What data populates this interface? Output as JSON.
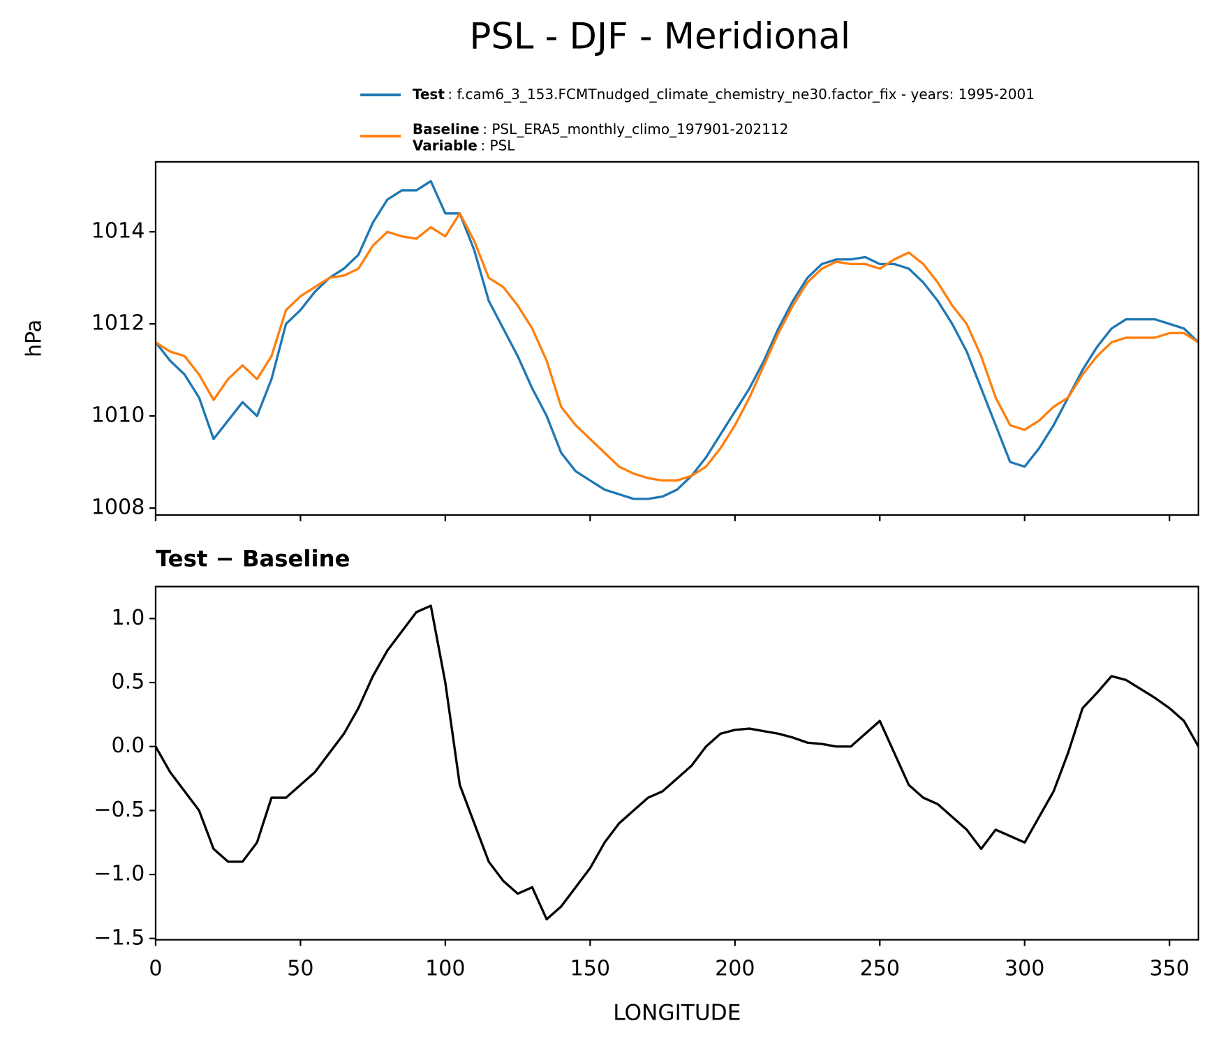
{
  "chart_data": [
    {
      "type": "line",
      "title": "PSL - DJF - Meridional",
      "ylabel": "hPa",
      "x": [
        0,
        5,
        10,
        15,
        20,
        25,
        30,
        35,
        40,
        45,
        50,
        55,
        60,
        65,
        70,
        75,
        80,
        85,
        90,
        95,
        100,
        105,
        110,
        115,
        120,
        125,
        130,
        135,
        140,
        145,
        150,
        155,
        160,
        165,
        170,
        175,
        180,
        185,
        190,
        195,
        200,
        205,
        210,
        215,
        220,
        225,
        230,
        235,
        240,
        245,
        250,
        255,
        260,
        265,
        270,
        275,
        280,
        285,
        290,
        295,
        300,
        305,
        310,
        315,
        320,
        325,
        330,
        335,
        340,
        345,
        350,
        355,
        360
      ],
      "series": [
        {
          "name": "Test",
          "detail": ": f.cam6_3_153.FCMTnudged_climate_chemistry_ne30.factor_fix - years: 1995-2001",
          "color": "#1f77b4",
          "values": [
            1011.6,
            1011.2,
            1010.9,
            1010.4,
            1009.5,
            1009.9,
            1010.3,
            1010.0,
            1010.8,
            1012.0,
            1012.3,
            1012.7,
            1013.0,
            1013.2,
            1013.5,
            1014.2,
            1014.7,
            1014.9,
            1014.9,
            1015.1,
            1014.4,
            1014.4,
            1013.6,
            1012.5,
            1011.9,
            1011.3,
            1010.6,
            1010.0,
            1009.2,
            1008.8,
            1008.6,
            1008.4,
            1008.3,
            1008.2,
            1008.2,
            1008.25,
            1008.4,
            1008.7,
            1009.1,
            1009.6,
            1010.1,
            1010.6,
            1011.2,
            1011.9,
            1012.5,
            1013.0,
            1013.3,
            1013.4,
            1013.4,
            1013.45,
            1013.3,
            1013.3,
            1013.2,
            1012.9,
            1012.5,
            1012.0,
            1011.4,
            1010.6,
            1009.8,
            1009.0,
            1008.9,
            1009.3,
            1009.8,
            1010.4,
            1011.0,
            1011.5,
            1011.9,
            1012.1,
            1012.1,
            1012.1,
            1012.0,
            1011.9,
            1011.6
          ]
        },
        {
          "name": "Baseline",
          "detail": ": PSL_ERA5_monthly_climo_197901-202112",
          "color": "#ff7f0e",
          "values": [
            1011.6,
            1011.4,
            1011.3,
            1010.9,
            1010.35,
            1010.8,
            1011.1,
            1010.8,
            1011.3,
            1012.3,
            1012.6,
            1012.8,
            1013.0,
            1013.05,
            1013.2,
            1013.7,
            1014.0,
            1013.9,
            1013.85,
            1014.1,
            1013.9,
            1014.4,
            1013.8,
            1013.0,
            1012.8,
            1012.4,
            1011.9,
            1011.2,
            1010.2,
            1009.8,
            1009.5,
            1009.2,
            1008.9,
            1008.75,
            1008.65,
            1008.6,
            1008.6,
            1008.7,
            1008.9,
            1009.3,
            1009.8,
            1010.4,
            1011.1,
            1011.8,
            1012.4,
            1012.9,
            1013.2,
            1013.35,
            1013.3,
            1013.3,
            1013.2,
            1013.4,
            1013.55,
            1013.3,
            1012.9,
            1012.4,
            1012.0,
            1011.3,
            1010.4,
            1009.8,
            1009.7,
            1009.9,
            1010.2,
            1010.4,
            1010.9,
            1011.3,
            1011.6,
            1011.7,
            1011.7,
            1011.7,
            1011.8,
            1011.8,
            1011.6
          ]
        }
      ],
      "variable_name": "Variable",
      "variable_detail": ": PSL",
      "xlim": [
        0,
        360
      ],
      "xticks": [
        0,
        50,
        100,
        150,
        200,
        250,
        300,
        350
      ],
      "show_xtick_labels": false,
      "ylim": [
        1007.85,
        1015.52
      ],
      "yticks": [
        1008,
        1010,
        1012,
        1014
      ]
    },
    {
      "type": "line",
      "title": "Test − Baseline",
      "xlabel": "LONGITUDE",
      "x": [
        0,
        5,
        10,
        15,
        20,
        25,
        30,
        35,
        40,
        45,
        50,
        55,
        60,
        65,
        70,
        75,
        80,
        85,
        90,
        95,
        100,
        105,
        110,
        115,
        120,
        125,
        130,
        135,
        140,
        145,
        150,
        155,
        160,
        165,
        170,
        175,
        180,
        185,
        190,
        195,
        200,
        205,
        210,
        215,
        220,
        225,
        230,
        235,
        240,
        245,
        250,
        255,
        260,
        265,
        270,
        275,
        280,
        285,
        290,
        295,
        300,
        305,
        310,
        315,
        320,
        325,
        330,
        335,
        340,
        345,
        350,
        355,
        360
      ],
      "series": [
        {
          "color": "#000000",
          "values": [
            0.0,
            -0.2,
            -0.35,
            -0.5,
            -0.8,
            -0.9,
            -0.9,
            -0.75,
            -0.4,
            -0.4,
            -0.3,
            -0.2,
            -0.05,
            0.1,
            0.3,
            0.55,
            0.75,
            0.9,
            1.05,
            1.1,
            0.5,
            -0.3,
            -0.6,
            -0.9,
            -1.05,
            -1.15,
            -1.1,
            -1.35,
            -1.25,
            -1.1,
            -0.95,
            -0.75,
            -0.6,
            -0.5,
            -0.4,
            -0.35,
            -0.25,
            -0.15,
            0.0,
            0.1,
            0.13,
            0.14,
            0.12,
            0.1,
            0.07,
            0.03,
            0.02,
            0.0,
            0.0,
            0.1,
            0.2,
            -0.05,
            -0.3,
            -0.4,
            -0.45,
            -0.55,
            -0.65,
            -0.8,
            -0.65,
            -0.7,
            -0.75,
            -0.55,
            -0.35,
            -0.05,
            0.3,
            0.42,
            0.55,
            0.52,
            0.45,
            0.38,
            0.3,
            0.2,
            0.0
          ]
        }
      ],
      "xlim": [
        0,
        360
      ],
      "xticks": [
        0,
        50,
        100,
        150,
        200,
        250,
        300,
        350
      ],
      "show_xtick_labels": true,
      "ylim": [
        -1.51,
        1.25
      ],
      "yticks": [
        {
          "value": -1.5,
          "label": "−1.5"
        },
        {
          "value": -1,
          "label": "−1.0"
        },
        {
          "value": -0.5,
          "label": "−0.5"
        },
        {
          "value": 0,
          "label": "0.0"
        },
        0.5,
        {
          "value": 1,
          "label": "1.0"
        }
      ]
    }
  ]
}
